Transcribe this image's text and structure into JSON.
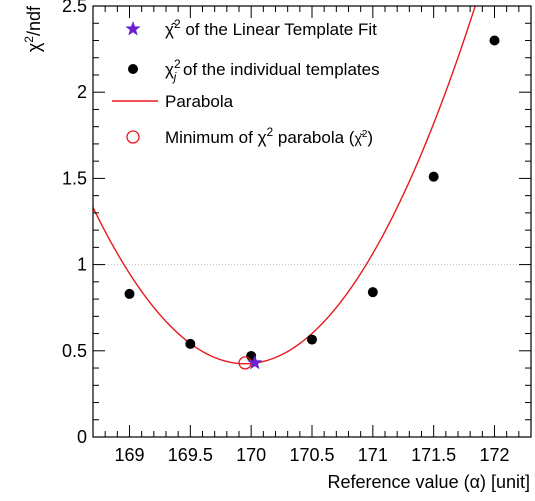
{
  "chart_data": {
    "type": "scatter",
    "xlabel": "Reference value (α) [unit]",
    "ylabel": "χ²/ndf",
    "xlim": [
      168.7,
      172.3
    ],
    "ylim": [
      0,
      2.5
    ],
    "x_ticks": [
      "169",
      "169.5",
      "170",
      "170.5",
      "171",
      "171.5",
      "172"
    ],
    "y_ticks": [
      "0",
      "0.5",
      "1",
      "1.5",
      "2",
      "2.5"
    ],
    "reference_line_y": 1.0,
    "grid": false,
    "legend_position": "top-left",
    "series": [
      {
        "name": "χ²ⱼ of the individual templates",
        "kind": "points",
        "color": "#000000",
        "x": [
          169,
          169.5,
          170,
          170.5,
          171,
          171.5,
          172
        ],
        "y": [
          0.83,
          0.54,
          0.47,
          0.565,
          0.84,
          1.51,
          2.3
        ]
      },
      {
        "name": "Parabola",
        "kind": "curve",
        "color": "#e8191e",
        "coefficients": {
          "a": 0.58,
          "x0": 169.95,
          "c": 0.425
        }
      },
      {
        "name": "χ̂² of the Linear Template Fit",
        "kind": "marker-star",
        "color": "#6a1fd1",
        "x": 170.03,
        "y": 0.43
      },
      {
        "name": "Minimum of χ² parabola (χ̆²)",
        "kind": "marker-open-circle",
        "color": "#e8191e",
        "x": 169.95,
        "y": 0.43
      }
    ]
  },
  "legend": {
    "star_label_pre": "χ̂",
    "star_label_post": " of the Linear Template Fit",
    "dots_label_pre": "χ",
    "dots_label_post": " of the individual templates",
    "dots_sub": "j",
    "parabola_label": "Parabola",
    "min_label_pre": "Minimum of χ",
    "min_label_mid": " parabola (",
    "min_label_chi": "χ̆",
    "min_label_post": ")",
    "sup2": "2"
  },
  "axes": {
    "ylabel_chi": "χ",
    "ylabel_sup": "2",
    "ylabel_post": "/ndf",
    "xlabel": "Reference value (α) [unit]"
  }
}
